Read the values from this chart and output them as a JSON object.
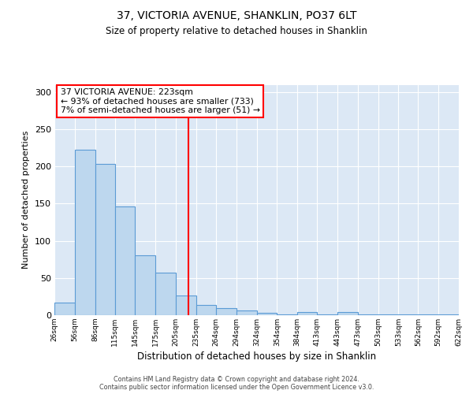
{
  "title": "37, VICTORIA AVENUE, SHANKLIN, PO37 6LT",
  "subtitle": "Size of property relative to detached houses in Shanklin",
  "xlabel": "Distribution of detached houses by size in Shanklin",
  "ylabel": "Number of detached properties",
  "bar_color": "#BDD7EE",
  "bar_edge_color": "#5B9BD5",
  "bg_color": "#DCE8F5",
  "vline_x": 223,
  "vline_color": "red",
  "annotation_title": "37 VICTORIA AVENUE: 223sqm",
  "annotation_line1": "← 93% of detached houses are smaller (733)",
  "annotation_line2": "7% of semi-detached houses are larger (51) →",
  "bins": [
    26,
    56,
    86,
    115,
    145,
    175,
    205,
    235,
    264,
    294,
    324,
    354,
    384,
    413,
    443,
    473,
    503,
    533,
    562,
    592,
    622
  ],
  "counts": [
    17,
    223,
    203,
    146,
    81,
    57,
    26,
    14,
    10,
    6,
    3,
    1,
    4,
    1,
    4,
    1,
    1,
    1,
    1,
    1
  ],
  "ylim": [
    0,
    310
  ],
  "yticks": [
    0,
    50,
    100,
    150,
    200,
    250,
    300
  ],
  "footer1": "Contains HM Land Registry data © Crown copyright and database right 2024.",
  "footer2": "Contains public sector information licensed under the Open Government Licence v3.0."
}
